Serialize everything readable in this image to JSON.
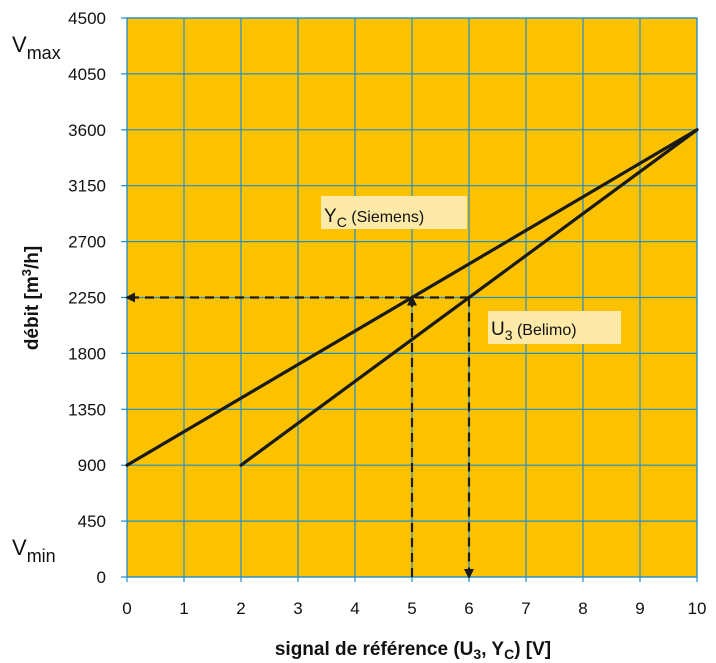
{
  "chart_data": {
    "type": "line",
    "xlabel_parts": {
      "prefix": "signal de référence (U",
      "sub1": "3",
      "mid": ", Y",
      "sub2": "C",
      "suffix": ") [V]"
    },
    "ylabel_parts": {
      "prefix": "débit [m",
      "sup": "3",
      "suffix": "/h]"
    },
    "xlim": [
      0,
      10
    ],
    "ylim": [
      0,
      4500
    ],
    "x_ticks": [
      "0",
      "1",
      "2",
      "3",
      "4",
      "5",
      "6",
      "7",
      "8",
      "9",
      "10"
    ],
    "y_ticks": [
      "0",
      "450",
      "900",
      "1350",
      "1800",
      "2250",
      "2700",
      "3150",
      "3600",
      "4050",
      "4500"
    ],
    "grid": true,
    "background_color": "#fcc200",
    "grid_color": "#1f8fcf",
    "line_color": "#1a1a1a",
    "v_labels": {
      "max": {
        "main": "V",
        "sub": "max"
      },
      "min": {
        "main": "V",
        "sub": "min"
      }
    },
    "series": [
      {
        "label": {
          "main": "Y",
          "sub": "C",
          "rest": " (Siemens)"
        },
        "points": [
          [
            0,
            900
          ],
          [
            10,
            3600
          ]
        ]
      },
      {
        "label": {
          "main": "U",
          "sub": "3",
          "rest": " (Belimo)"
        },
        "points": [
          [
            2,
            900
          ],
          [
            10,
            3600
          ]
        ]
      }
    ],
    "annotations": [
      {
        "type": "dashed-arrow",
        "from": [
          5,
          0
        ],
        "to": [
          5,
          2250
        ]
      },
      {
        "type": "dashed-arrow",
        "from": [
          6,
          2250
        ],
        "to": [
          6,
          0
        ]
      },
      {
        "type": "dashed-arrow",
        "from": [
          6,
          2250
        ],
        "to": [
          0,
          2250
        ]
      }
    ]
  }
}
